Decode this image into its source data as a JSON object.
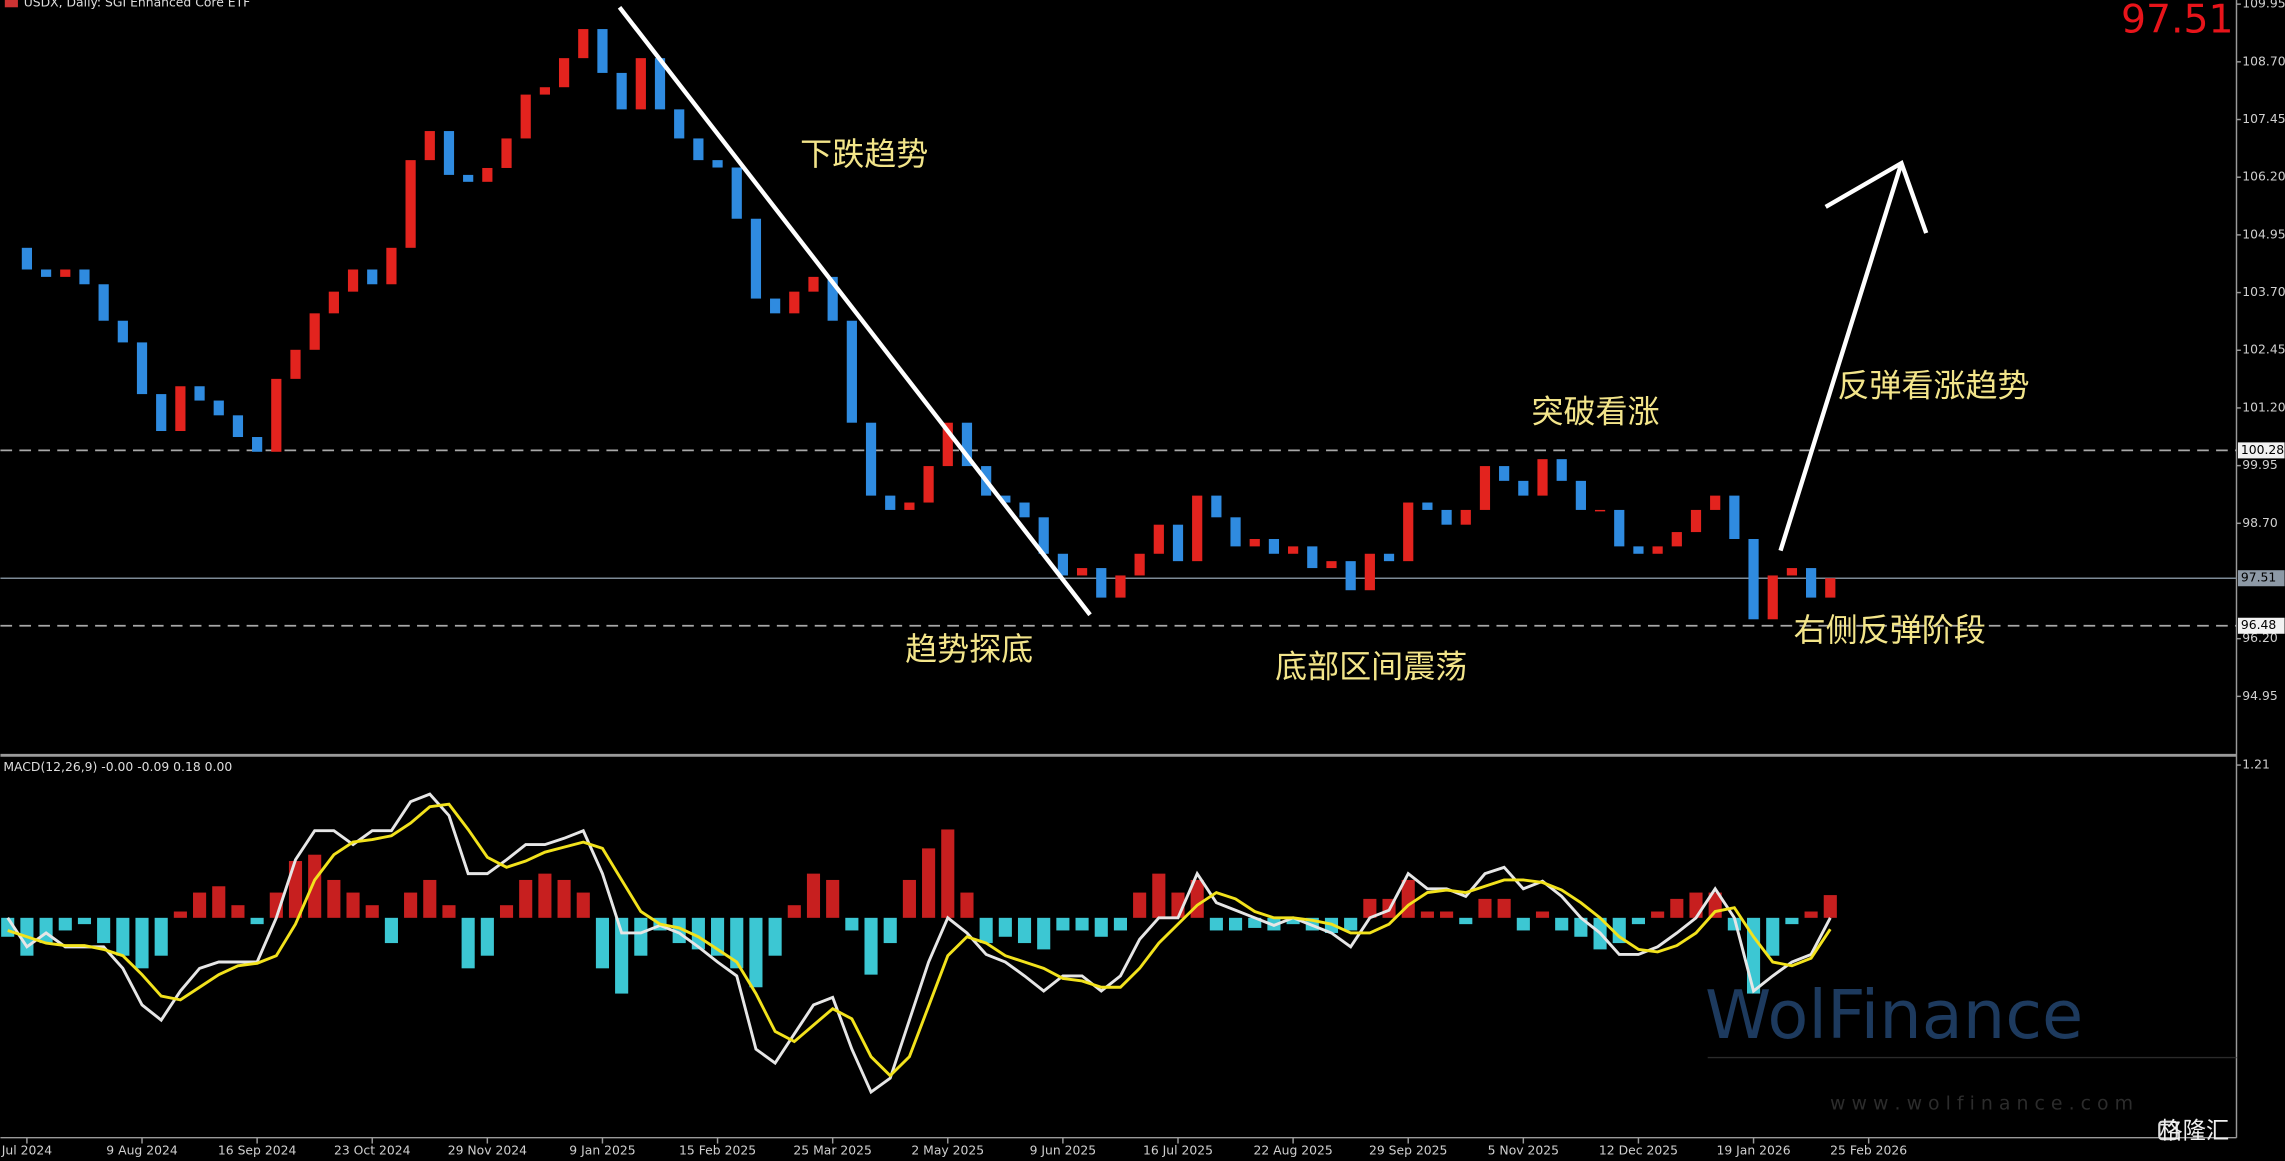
{
  "chart_data": [
    {
      "type": "candlestick",
      "title": "USDX, Daily: SGI Enhanced Core ETF",
      "last_price": 97.51,
      "categories": [
        null,
        "Jul 2024",
        null,
        null,
        null,
        null,
        null,
        "9 Aug 2024",
        null,
        null,
        null,
        null,
        null,
        "16 Sep 2024",
        null,
        null,
        null,
        null,
        null,
        "23 Oct 2024",
        null,
        null,
        null,
        null,
        null,
        "29 Nov 2024",
        null,
        null,
        null,
        null,
        null,
        "9 Jan 2025",
        null,
        null,
        null,
        null,
        null,
        "15 Feb 2025",
        null,
        null,
        null,
        null,
        null,
        "25 Mar 2025",
        null,
        null,
        null,
        null,
        null,
        "2 May 2025",
        null,
        null,
        null,
        null,
        null,
        "9 Jun 2025",
        null,
        null,
        null,
        null,
        null,
        "16 Jul 2025",
        null,
        null,
        null,
        null,
        null,
        "22 Aug 2025",
        null,
        null,
        null,
        null,
        null,
        "29 Sep 2025",
        null,
        null,
        null,
        null,
        null,
        "5 Nov 2025",
        null,
        null,
        null,
        null,
        null,
        "12 Dec 2025",
        null,
        null,
        null,
        null,
        null,
        "19 Jan 2026",
        null,
        null,
        null,
        null,
        null,
        "25 Feb 2026"
      ],
      "values": [
        104.67,
        104.2,
        104.04,
        104.2,
        103.88,
        103.09,
        102.62,
        101.5,
        100.7,
        101.67,
        101.36,
        101.04,
        100.57,
        100.25,
        101.83,
        102.46,
        103.25,
        103.72,
        104.2,
        103.88,
        104.67,
        106.57,
        107.2,
        106.25,
        106.1,
        106.4,
        107.04,
        107.99,
        108.15,
        108.78,
        109.41,
        108.46,
        107.67,
        108.78,
        107.67,
        107.04,
        106.57,
        106.41,
        105.3,
        103.57,
        103.25,
        103.72,
        104.04,
        103.09,
        100.88,
        99.3,
        98.99,
        99.15,
        99.94,
        100.88,
        99.94,
        99.3,
        99.15,
        98.83,
        98.04,
        97.57,
        97.73,
        97.09,
        97.57,
        98.04,
        98.67,
        97.88,
        99.3,
        98.83,
        98.2,
        98.36,
        98.04,
        98.2,
        97.73,
        97.88,
        97.25,
        98.04,
        97.88,
        99.15,
        98.99,
        98.67,
        98.99,
        99.94,
        99.62,
        99.3,
        100.09,
        99.62,
        98.99,
        98.99,
        98.2,
        98.04,
        98.2,
        98.51,
        98.99,
        99.3,
        98.36,
        96.62,
        97.57,
        97.73,
        97.09,
        97.51,
        null,
        null
      ],
      "up_color": "#e3231e",
      "down_color": "#2f8be0",
      "ylim": [
        93.72,
        110.04
      ],
      "yticks": [
        109.95,
        {
          "value": 108.7,
          "label": "108.70"
        },
        107.45,
        {
          "value": 106.2,
          "label": "106.20"
        },
        104.95,
        {
          "value": 103.7,
          "label": "103.70"
        },
        102.45,
        {
          "value": 101.2,
          "label": "101.20"
        },
        99.95,
        {
          "value": 98.7,
          "label": "98.70"
        },
        {
          "value": 96.2,
          "label": "96.20"
        },
        94.95
      ],
      "levels": [
        {
          "value": 100.28,
          "style": "dashed"
        },
        {
          "value": 97.51,
          "style": "solid"
        },
        {
          "value": 96.48,
          "style": "dashed"
        }
      ],
      "annotations": [
        "下跌趋势",
        "趋势探底",
        "底部区间震荡",
        "突破看涨",
        "反弹看涨趋势",
        "右侧反弹阶段"
      ]
    },
    {
      "type": "macd",
      "title": "MACD(12,26,9) -0.00 -0.09 0.18 0.00",
      "series": [
        {
          "color": "#e6e6e6",
          "values": [
            0,
            -0.23,
            -0.12,
            -0.23,
            -0.23,
            -0.23,
            -0.4,
            -0.69,
            -0.81,
            -0.58,
            -0.4,
            -0.35,
            -0.35,
            -0.35,
            0,
            0.46,
            0.69,
            0.69,
            0.58,
            0.69,
            0.69,
            0.92,
            0.98,
            0.81,
            0.35,
            0.35,
            0.46,
            0.58,
            0.58,
            0.63,
            0.69,
            0.35,
            -0.12,
            -0.12,
            -0.06,
            -0.12,
            -0.23,
            -0.35,
            -0.46,
            -1.04,
            -1.15,
            -0.92,
            -0.69,
            -0.63,
            -1.04,
            -1.38,
            -1.27,
            -0.81,
            -0.35,
            0,
            -0.12,
            -0.29,
            -0.35,
            -0.46,
            -0.58,
            -0.46,
            -0.46,
            -0.58,
            -0.46,
            -0.17,
            0,
            0,
            0.35,
            0.12,
            0.06,
            0,
            -0.06,
            0,
            -0.06,
            -0.12,
            -0.23,
            0,
            0.06,
            0.35,
            0.23,
            0.23,
            0.17,
            0.35,
            0.4,
            0.23,
            0.29,
            0.17,
            0,
            -0.12,
            -0.29,
            -0.29,
            -0.23,
            -0.12,
            0,
            0.23,
            0,
            -0.58,
            -0.46,
            -0.35,
            -0.29,
            0,
            null,
            null
          ]
        },
        {
          "color": "#f2e21c",
          "values": [
            -0.1,
            -0.15,
            -0.2,
            -0.22,
            -0.22,
            -0.25,
            -0.3,
            -0.45,
            -0.62,
            -0.65,
            -0.55,
            -0.45,
            -0.38,
            -0.36,
            -0.3,
            -0.05,
            0.3,
            0.5,
            0.6,
            0.62,
            0.65,
            0.75,
            0.88,
            0.9,
            0.7,
            0.48,
            0.4,
            0.45,
            0.52,
            0.56,
            0.6,
            0.55,
            0.3,
            0.05,
            -0.05,
            -0.08,
            -0.15,
            -0.25,
            -0.35,
            -0.6,
            -0.9,
            -0.98,
            -0.85,
            -0.72,
            -0.8,
            -1.1,
            -1.25,
            -1.1,
            -0.7,
            -0.3,
            -0.15,
            -0.2,
            -0.3,
            -0.35,
            -0.4,
            -0.48,
            -0.5,
            -0.55,
            -0.55,
            -0.4,
            -0.2,
            -0.05,
            0.1,
            0.2,
            0.15,
            0.05,
            0,
            0,
            -0.02,
            -0.05,
            -0.12,
            -0.12,
            -0.05,
            0.1,
            0.2,
            0.22,
            0.2,
            0.25,
            0.3,
            0.3,
            0.28,
            0.22,
            0.12,
            0,
            -0.15,
            -0.25,
            -0.27,
            -0.22,
            -0.12,
            0.05,
            0.08,
            -0.15,
            -0.35,
            -0.38,
            -0.32,
            -0.09,
            null,
            null
          ]
        }
      ],
      "histogram": {
        "up_color": "#c71f1f",
        "down_color": "#3cc7d3",
        "values": [
          -0.15,
          -0.3,
          -0.2,
          -0.1,
          -0.05,
          -0.2,
          -0.3,
          -0.4,
          -0.3,
          0.05,
          0.2,
          0.25,
          0.1,
          -0.05,
          0.2,
          0.45,
          0.5,
          0.3,
          0.2,
          0.1,
          -0.2,
          0.2,
          0.3,
          0.1,
          -0.4,
          -0.3,
          0.1,
          0.3,
          0.35,
          0.3,
          0.2,
          -0.4,
          -0.6,
          -0.3,
          -0.1,
          -0.2,
          -0.25,
          -0.3,
          -0.4,
          -0.55,
          -0.3,
          0.1,
          0.35,
          0.3,
          -0.1,
          -0.45,
          -0.2,
          0.3,
          0.55,
          0.7,
          0.2,
          -0.2,
          -0.15,
          -0.2,
          -0.25,
          -0.1,
          -0.1,
          -0.15,
          -0.1,
          0.2,
          0.35,
          0.2,
          0.3,
          -0.1,
          -0.1,
          -0.08,
          -0.1,
          -0.05,
          -0.1,
          -0.12,
          -0.1,
          0.15,
          0.15,
          0.3,
          0.05,
          0.05,
          -0.05,
          0.15,
          0.15,
          -0.1,
          0.05,
          -0.1,
          -0.15,
          -0.25,
          -0.2,
          -0.05,
          0.05,
          0.15,
          0.2,
          0.2,
          -0.1,
          -0.6,
          -0.3,
          -0.05,
          0.05,
          0.18,
          null,
          null
        ]
      },
      "ylim": [
        -1.73,
        1.27
      ],
      "yticks": [
        1.21
      ]
    }
  ],
  "watermark": {
    "brand": "WolFinance",
    "url": "w w w . w o l f i n a n c e . c o m",
    "logo": "格隆汇"
  }
}
